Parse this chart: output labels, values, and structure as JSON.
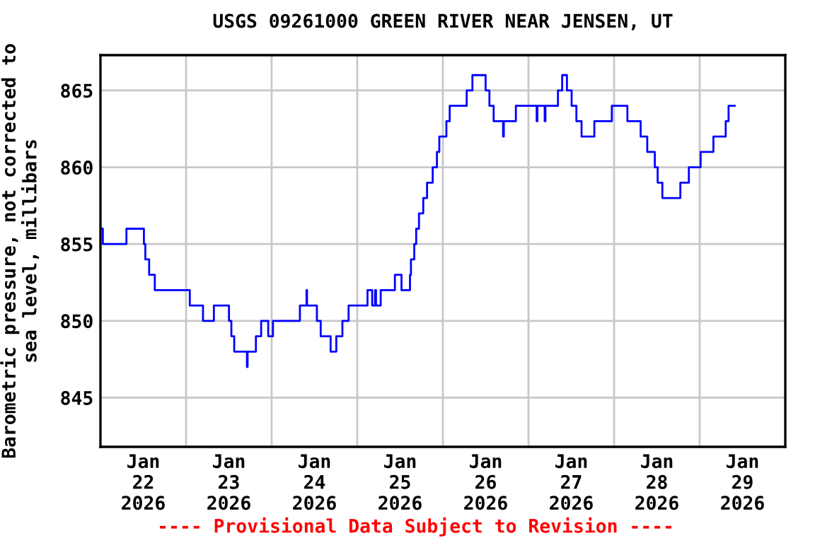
{
  "chart_data": {
    "type": "step",
    "title": "USGS 09261000 GREEN RIVER NEAR JENSEN, UT",
    "ylabel": "Barometric pressure, not corrected to\nsea level, millibars",
    "annotations": [
      "---- Provisional Data Subject to Revision ----"
    ],
    "grid": true,
    "line_style": "solid",
    "xlim": [
      "2026-01-22T00:00",
      "2026-01-30T00:00"
    ],
    "xticks": [
      {
        "value": "2026-01-22T12:00",
        "label": "Jan\n22\n2026"
      },
      {
        "value": "2026-01-23T12:00",
        "label": "Jan\n23\n2026"
      },
      {
        "value": "2026-01-24T12:00",
        "label": "Jan\n24\n2026"
      },
      {
        "value": "2026-01-25T12:00",
        "label": "Jan\n25\n2026"
      },
      {
        "value": "2026-01-26T12:00",
        "label": "Jan\n26\n2026"
      },
      {
        "value": "2026-01-27T12:00",
        "label": "Jan\n27\n2026"
      },
      {
        "value": "2026-01-28T12:00",
        "label": "Jan\n28\n2026"
      },
      {
        "value": "2026-01-29T12:00",
        "label": "Jan\n29\n2026"
      },
      {
        "value": "2026-01-23T00:00",
        "label": null
      },
      {
        "value": "2026-01-24T00:00",
        "label": null
      },
      {
        "value": "2026-01-25T00:00",
        "label": null
      },
      {
        "value": "2026-01-26T00:00",
        "label": null
      },
      {
        "value": "2026-01-27T00:00",
        "label": null
      },
      {
        "value": "2026-01-28T00:00",
        "label": null
      },
      {
        "value": "2026-01-29T00:00",
        "label": null
      }
    ],
    "ylim": [
      841.8,
      867.3
    ],
    "yticks": [
      845,
      850,
      855,
      860,
      865
    ],
    "series": [
      {
        "color": "#0000ff",
        "x": [
          "2026-01-22T00:00",
          "2026-01-22T00:16",
          "2026-01-22T00:40",
          "2026-01-22T07:17",
          "2026-01-22T12:11",
          "2026-01-22T12:35",
          "2026-01-22T13:39",
          "2026-01-22T15:14",
          "2026-01-23T01:03",
          "2026-01-23T04:45",
          "2026-01-23T07:48",
          "2026-01-23T12:02",
          "2026-01-23T12:42",
          "2026-01-23T13:30",
          "2026-01-23T17:04",
          "2026-01-23T17:15",
          "2026-01-23T19:35",
          "2026-01-23T21:03",
          "2026-01-23T23:02",
          "2026-01-24T00:22",
          "2026-01-24T07:55",
          "2026-01-24T09:46",
          "2026-01-24T09:55",
          "2026-01-24T12:41",
          "2026-01-24T13:45",
          "2026-01-24T16:32",
          "2026-01-24T18:07",
          "2026-01-24T19:50",
          "2026-01-24T21:34",
          "2026-01-25T02:52",
          "2026-01-25T04:11",
          "2026-01-25T04:59",
          "2026-01-25T05:15",
          "2026-01-25T06:34",
          "2026-01-25T10:33",
          "2026-01-25T12:24",
          "2026-01-25T14:47",
          "2026-01-25T15:03",
          "2026-01-25T15:59",
          "2026-01-25T16:31",
          "2026-01-25T17:18",
          "2026-01-25T18:30",
          "2026-01-25T19:34",
          "2026-01-25T21:09",
          "2026-01-25T22:20",
          "2026-01-25T23:00",
          "2026-01-26T00:59",
          "2026-01-26T01:55",
          "2026-01-26T06:41",
          "2026-01-26T08:17",
          "2026-01-26T11:59",
          "2026-01-26T13:03",
          "2026-01-26T14:14",
          "2026-01-26T16:53",
          "2026-01-26T17:05",
          "2026-01-26T20:28",
          "2026-01-27T02:18",
          "2026-01-27T02:30",
          "2026-01-27T04:33",
          "2026-01-27T04:45",
          "2026-01-27T08:16",
          "2026-01-27T09:27",
          "2026-01-27T10:47",
          "2026-01-27T12:06",
          "2026-01-27T13:26",
          "2026-01-27T14:53",
          "2026-01-27T18:28",
          "2026-01-27T23:22",
          "2026-01-28T03:44",
          "2026-01-28T07:27",
          "2026-01-28T09:18",
          "2026-01-28T11:25",
          "2026-01-28T12:13",
          "2026-01-28T13:32",
          "2026-01-28T18:35",
          "2026-01-28T20:58",
          "2026-01-29T00:16",
          "2026-01-29T03:51",
          "2026-01-29T07:18",
          "2026-01-29T08:06",
          "2026-01-29T09:49"
        ],
        "values": [
          856,
          856,
          855,
          856,
          855,
          854,
          853,
          852,
          851,
          850,
          851,
          850,
          849,
          848,
          847,
          848,
          849,
          850,
          849,
          850,
          851,
          852,
          851,
          850,
          849,
          848,
          849,
          850,
          851,
          852,
          851,
          852,
          851,
          852,
          853,
          852,
          853,
          854,
          855,
          856,
          857,
          858,
          859,
          860,
          861,
          862,
          863,
          864,
          865,
          866,
          865,
          864,
          863,
          862,
          863,
          864,
          863,
          864,
          863,
          864,
          865,
          866,
          865,
          864,
          863,
          862,
          863,
          864,
          863,
          862,
          861,
          860,
          859,
          858,
          859,
          860,
          861,
          862,
          863,
          864,
          864
        ]
      }
    ]
  }
}
